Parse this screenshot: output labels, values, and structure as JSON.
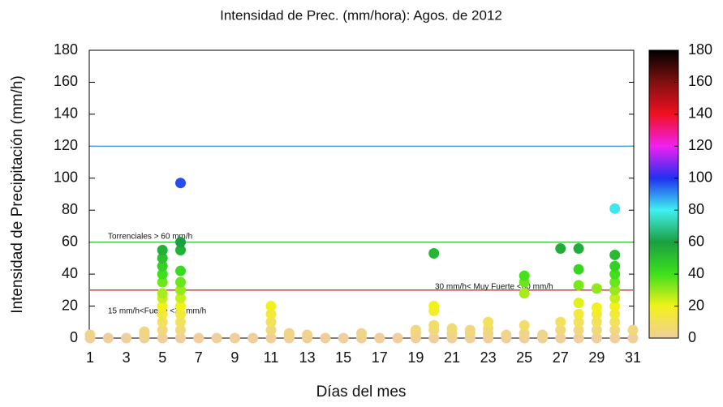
{
  "chart_data": {
    "type": "scatter",
    "title": "Intensidad de Prec. (mm/hora): Agos.  de  2012",
    "x_label": "Días del mes",
    "y_label": "Intensidad de Precipitación (mm/h)",
    "x": [
      1,
      1,
      2,
      3,
      4,
      4,
      4,
      5,
      5,
      5,
      5,
      5,
      5,
      5,
      5,
      5,
      5,
      5,
      5,
      6,
      6,
      6,
      6,
      6,
      6,
      6,
      6,
      6,
      6,
      6,
      6,
      7,
      8,
      9,
      10,
      11,
      11,
      11,
      11,
      11,
      12,
      12,
      12,
      13,
      13,
      14,
      15,
      16,
      16,
      17,
      18,
      19,
      19,
      19,
      20,
      20,
      20,
      20,
      20,
      20,
      21,
      21,
      21,
      22,
      22,
      22,
      23,
      23,
      23,
      23,
      24,
      24,
      25,
      25,
      25,
      25,
      25,
      25,
      26,
      26,
      27,
      27,
      27,
      27,
      28,
      28,
      28,
      28,
      28,
      28,
      28,
      28,
      29,
      29,
      29,
      29,
      29,
      29,
      30,
      30,
      30,
      30,
      30,
      30,
      30,
      30,
      30,
      30,
      30,
      30,
      31,
      31
    ],
    "y": [
      0,
      2,
      0,
      0,
      0,
      2,
      4,
      0,
      5,
      10,
      15,
      20,
      25,
      28,
      35,
      40,
      45,
      50,
      55,
      0,
      5,
      10,
      15,
      20,
      25,
      30,
      35,
      42,
      55,
      60,
      97,
      0,
      0,
      0,
      0,
      0,
      5,
      10,
      15,
      20,
      0,
      2,
      3,
      0,
      2,
      0,
      0,
      0,
      3,
      0,
      0,
      0,
      3,
      5,
      0,
      5,
      8,
      17,
      20,
      53,
      0,
      3,
      6,
      0,
      3,
      5,
      0,
      3,
      6,
      10,
      0,
      2,
      0,
      3,
      8,
      28,
      35,
      39,
      0,
      2,
      0,
      5,
      10,
      56,
      0,
      5,
      10,
      15,
      22,
      33,
      43,
      56,
      0,
      5,
      10,
      15,
      19,
      31,
      0,
      5,
      10,
      15,
      20,
      25,
      30,
      35,
      40,
      45,
      52,
      81,
      0,
      5
    ],
    "xlim": [
      1,
      31
    ],
    "xticks": [
      1,
      3,
      5,
      7,
      9,
      11,
      13,
      15,
      17,
      19,
      21,
      23,
      25,
      27,
      29,
      31
    ],
    "ylim": [
      0,
      180
    ],
    "yticks": [
      0,
      20,
      40,
      60,
      80,
      100,
      120,
      140,
      160,
      180
    ],
    "reference_lines": [
      {
        "value": 120,
        "color": "#3fa4e0"
      },
      {
        "value": 60,
        "color": "#3cc23c",
        "label": "Torrenciales > 60 mm/h"
      },
      {
        "value": 30,
        "color": "#d42a1e",
        "label": "30 mm/h< Muy Fuerte <60 mm/h"
      }
    ],
    "annotations": [
      "15 mm/h<Fuerte <30 mm/h"
    ],
    "colorbar": {
      "lim": [
        0,
        180
      ],
      "ticks": [
        0,
        20,
        40,
        60,
        80,
        100,
        120,
        140,
        160,
        180
      ],
      "stops": [
        {
          "value": 0,
          "color": "#f0cf9c"
        },
        {
          "value": 20,
          "color": "#f2f21a"
        },
        {
          "value": 40,
          "color": "#3ee01c"
        },
        {
          "value": 60,
          "color": "#1aa040"
        },
        {
          "value": 80,
          "color": "#40f0f0"
        },
        {
          "value": 100,
          "color": "#2030f0"
        },
        {
          "value": 120,
          "color": "#f020f0"
        },
        {
          "value": 140,
          "color": "#f01020"
        },
        {
          "value": 160,
          "color": "#801010"
        },
        {
          "value": 180,
          "color": "#000000"
        }
      ]
    }
  }
}
